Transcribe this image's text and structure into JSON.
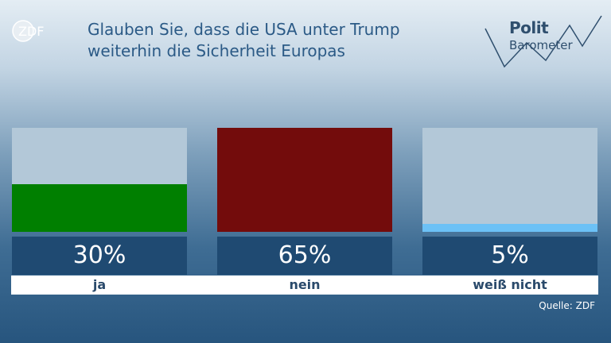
{
  "logo": "ZDF",
  "title_lines": [
    "Glauben Sie, dass die USA unter Trump",
    "weiterhin die Sicherheit Europas"
  ],
  "brand": {
    "line1": "Polit",
    "line2": "Barometer"
  },
  "source": "Quelle: ZDF",
  "colors": {
    "ja": "#007f00",
    "nein": "#730c0c",
    "weiss_nicht": "#6cc1f6",
    "bar_background": "#b3c8d8",
    "value_box": "#1f4a72"
  },
  "chart_data": {
    "type": "bar",
    "categories": [
      "ja",
      "nein",
      "weiß nicht"
    ],
    "values": [
      30,
      65,
      5
    ],
    "value_labels": [
      "30%",
      "65%",
      "5%"
    ],
    "ylim": [
      0,
      65
    ],
    "title": "Glauben Sie, dass die USA unter Trump weiterhin die Sicherheit Europas"
  }
}
